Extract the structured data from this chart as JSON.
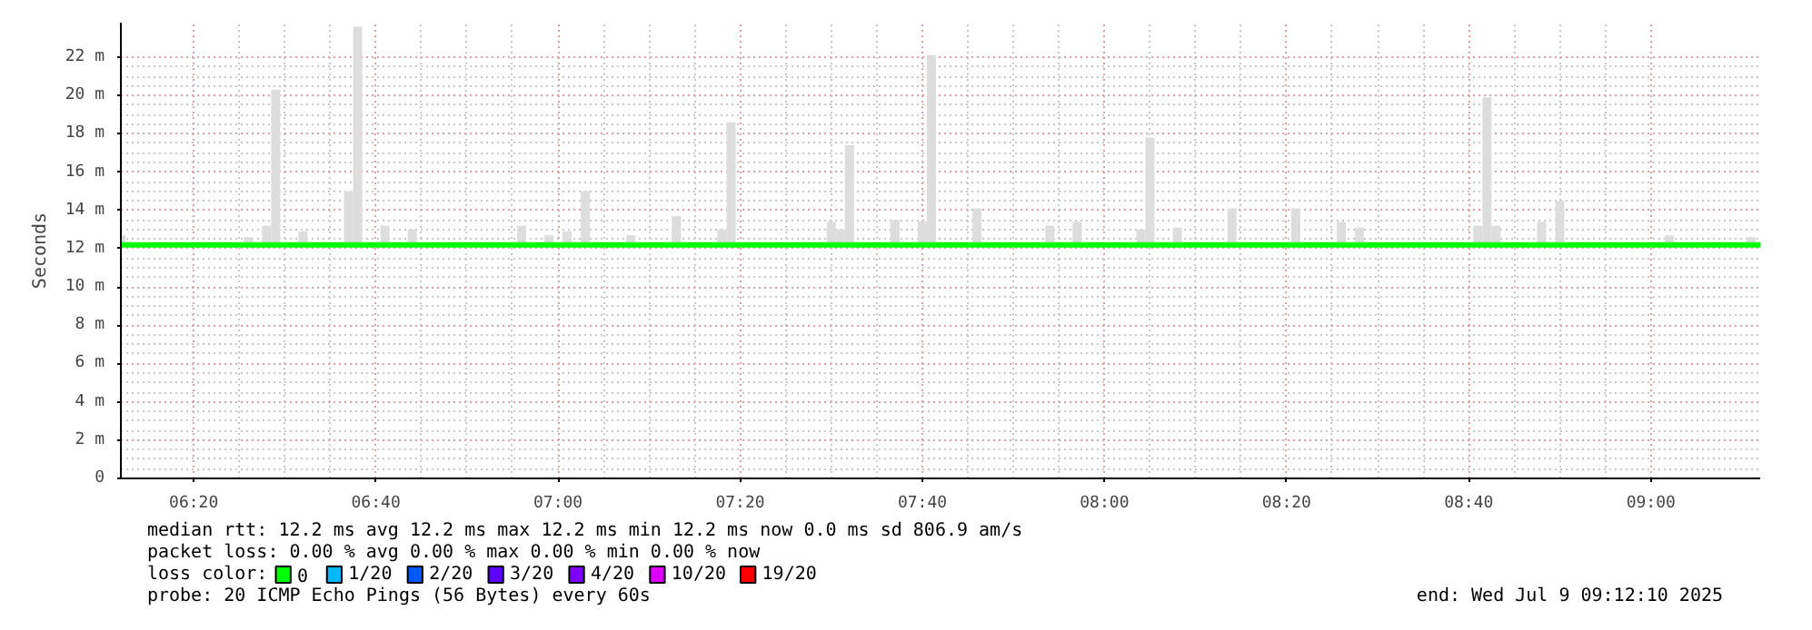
{
  "chart_data": {
    "type": "line",
    "ylabel": "Seconds",
    "xlim": [
      6.2,
      9.2
    ],
    "ylim": [
      0,
      23.8
    ],
    "xticks": [
      {
        "value": 6.3333,
        "label": "06:20"
      },
      {
        "value": 6.6667,
        "label": "06:40"
      },
      {
        "value": 7.0,
        "label": "07:00"
      },
      {
        "value": 7.3333,
        "label": "07:20"
      },
      {
        "value": 7.6667,
        "label": "07:40"
      },
      {
        "value": 8.0,
        "label": "08:00"
      },
      {
        "value": 8.3333,
        "label": "08:20"
      },
      {
        "value": 8.6667,
        "label": "08:40"
      },
      {
        "value": 9.0,
        "label": "09:00"
      }
    ],
    "yticks": [
      0,
      {
        "value": 2,
        "label": "2 m"
      },
      {
        "value": 4,
        "label": "4 m"
      },
      {
        "value": 6,
        "label": "6 m"
      },
      {
        "value": 8,
        "label": "8 m"
      },
      {
        "value": 10,
        "label": "10 m"
      },
      {
        "value": 12,
        "label": "12 m"
      },
      {
        "value": 14,
        "label": "14 m"
      },
      {
        "value": 16,
        "label": "16 m"
      },
      {
        "value": 18,
        "label": "18 m"
      },
      {
        "value": 20,
        "label": "20 m"
      },
      {
        "value": 22,
        "label": "22 m"
      }
    ],
    "grid": true,
    "legend": "bottom",
    "legend_title": "loss color:",
    "series": [
      {
        "type": "bar",
        "color": "#dddddd",
        "x": [
          6.2,
          6.4333,
          6.4667,
          6.4833,
          6.5333,
          6.6167,
          6.6333,
          6.6833,
          6.7333,
          6.9333,
          6.9833,
          7.0167,
          7.05,
          7.1333,
          7.2167,
          7.3,
          7.3167,
          7.5,
          7.5167,
          7.5333,
          7.6167,
          7.6667,
          7.6833,
          7.7667,
          7.9,
          7.95,
          8.0667,
          8.0833,
          8.1333,
          8.2333,
          8.35,
          8.4333,
          8.4667,
          8.6833,
          8.7,
          8.7167,
          8.8,
          8.8333,
          9.0333,
          9.1833
        ],
        "base": [
          12.2,
          12.2,
          12.2,
          12.2,
          12.2,
          12.2,
          12.2,
          12.2,
          12.2,
          12.2,
          12.2,
          12.2,
          12.2,
          12.2,
          12.2,
          12.2,
          12.2,
          12.2,
          12.2,
          12.2,
          12.2,
          12.2,
          12.2,
          12.2,
          12.2,
          12.2,
          12.2,
          12.2,
          12.2,
          12.2,
          12.2,
          12.2,
          12.2,
          12.2,
          12.2,
          12.2,
          12.2,
          12.2,
          12.2,
          12.2
        ],
        "values": [
          0.5,
          0.4,
          1.0,
          8.1,
          0.7,
          2.8,
          11.4,
          1.0,
          0.8,
          1.0,
          0.5,
          0.7,
          2.8,
          0.5,
          1.5,
          0.8,
          6.4,
          1.2,
          0.8,
          5.2,
          1.3,
          1.2,
          9.9,
          1.9,
          1.0,
          1.2,
          0.8,
          5.6,
          0.9,
          1.9,
          1.9,
          1.2,
          0.9,
          1.0,
          7.7,
          1.0,
          1.2,
          2.3,
          0.5,
          0.4
        ]
      },
      {
        "name": "0",
        "color": "#00ff00",
        "x": [
          6.2,
          9.2
        ],
        "values": [
          12.2,
          12.2
        ]
      },
      {
        "name": "1/20",
        "color": "#00b8ff"
      },
      {
        "name": "2/20",
        "color": "#0059ff"
      },
      {
        "name": "3/20",
        "color": "#5e00ff"
      },
      {
        "name": "4/20",
        "color": "#7e00ff"
      },
      {
        "name": "10/20",
        "color": "#dd00ff"
      },
      {
        "name": "19/20",
        "color": "#ff0000"
      }
    ],
    "annotations": [
      "median rtt:  12.2 ms avg  12.2 ms max  12.2 ms min  12.2 ms now  0.0 ms sd  806.9   am/s",
      "packet loss: 0.00 % avg  0.00 % max  0.00 % min  0.00 % now",
      "probe:       20 ICMP Echo Pings (56 Bytes) every 60s",
      "end: Wed Jul  9 09:12:10 2025"
    ]
  }
}
